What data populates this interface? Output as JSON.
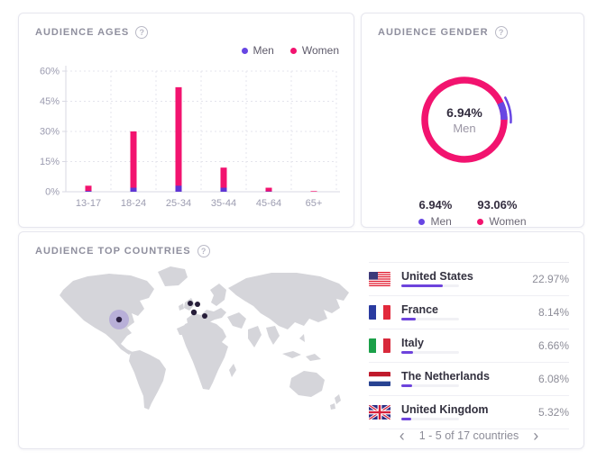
{
  "icons": {
    "help": "?"
  },
  "panels": {
    "ages": {
      "title": "AUDIENCE AGES",
      "legend": [
        {
          "label": "Men",
          "color": "#6746e3"
        },
        {
          "label": "Women",
          "color": "#f2136f"
        }
      ]
    },
    "gender": {
      "title": "AUDIENCE GENDER",
      "center_value": "6.94%",
      "center_label": "Men",
      "stats": [
        {
          "value": "6.94%",
          "label": "Men",
          "color": "#6746e3"
        },
        {
          "value": "93.06%",
          "label": "Women",
          "color": "#f2136f"
        }
      ]
    },
    "countries": {
      "title": "AUDIENCE TOP COUNTRIES",
      "rows": [
        {
          "flag": "us",
          "name": "United States",
          "pct": "22.97%",
          "pct_value": 22.97
        },
        {
          "flag": "fr",
          "name": "France",
          "pct": "8.14%",
          "pct_value": 8.14
        },
        {
          "flag": "it",
          "name": "Italy",
          "pct": "6.66%",
          "pct_value": 6.66
        },
        {
          "flag": "nl",
          "name": "The Netherlands",
          "pct": "6.08%",
          "pct_value": 6.08
        },
        {
          "flag": "gb",
          "name": "United Kingdom",
          "pct": "5.32%",
          "pct_value": 5.32
        }
      ],
      "pagination": {
        "prev": "‹",
        "label": "1 - 5 of 17 countries",
        "next": "›"
      }
    }
  },
  "chart_data": [
    {
      "type": "bar",
      "title": "Audience Ages",
      "categories": [
        "13-17",
        "18-24",
        "25-34",
        "35-44",
        "45-64",
        "65+"
      ],
      "series": [
        {
          "name": "Men",
          "color": "#5f35d4",
          "values": [
            0.4,
            2,
            3,
            2,
            0.2,
            0.1
          ]
        },
        {
          "name": "Women",
          "color": "#f2136f",
          "values": [
            3,
            30,
            52,
            12,
            2,
            0.3
          ]
        }
      ],
      "xlabel": "",
      "ylabel": "",
      "ylim": [
        0,
        60
      ],
      "yticks": [
        0,
        15,
        30,
        45,
        60
      ],
      "grid": true,
      "legend_position": "top-right"
    },
    {
      "type": "pie",
      "title": "Audience Gender",
      "labels": [
        "Men",
        "Women"
      ],
      "values": [
        6.94,
        93.06
      ],
      "colors": [
        "#6746e3",
        "#f2136f"
      ],
      "highlighted": "Men",
      "donut": true
    }
  ]
}
